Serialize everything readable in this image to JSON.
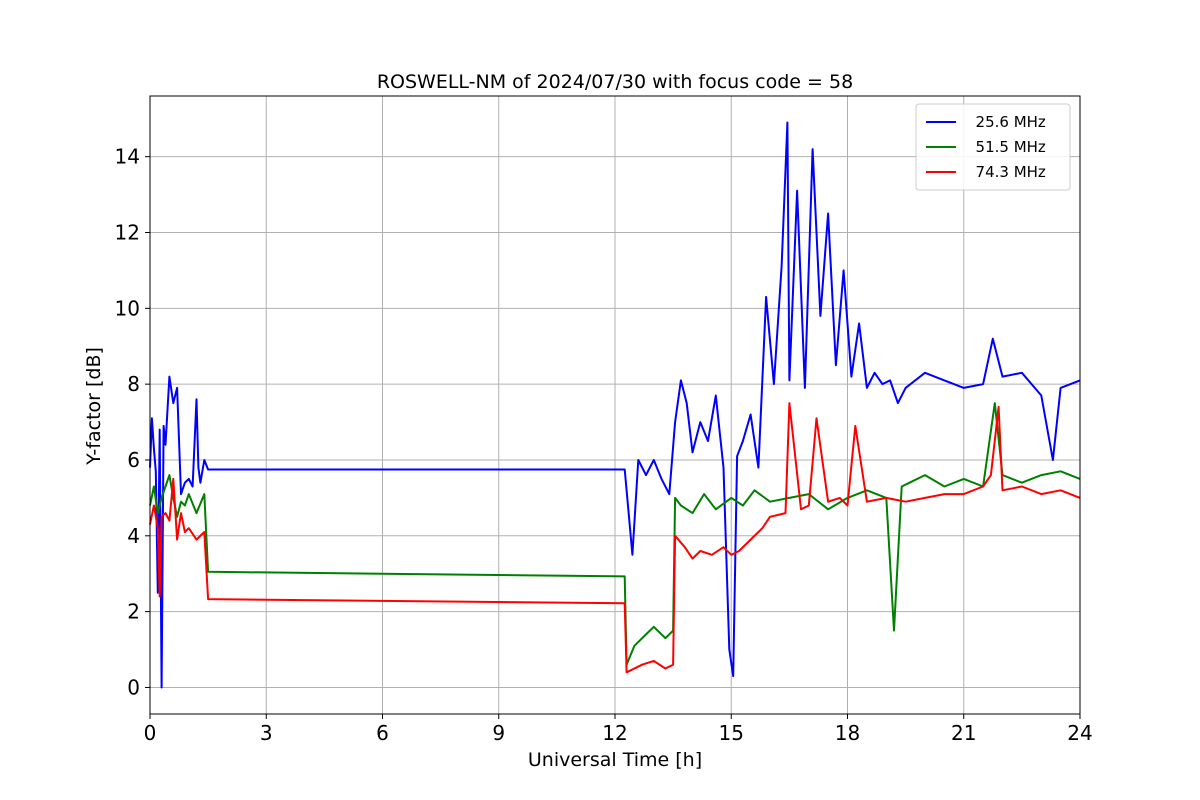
{
  "chart_data": {
    "type": "line",
    "title": "ROSWELL-NM of 2024/07/30 with focus code = 58",
    "xlabel": "Universal Time [h]",
    "ylabel": "Y-factor [dB]",
    "xlim": [
      0,
      24
    ],
    "ylim": [
      -0.7,
      15.6
    ],
    "xticks": [
      0,
      3,
      6,
      9,
      12,
      15,
      18,
      21,
      24
    ],
    "yticks": [
      0,
      2,
      4,
      6,
      8,
      10,
      12,
      14
    ],
    "grid": true,
    "legend_position": "top-right",
    "series": [
      {
        "name": "25.6 MHz",
        "color": "#0000ff",
        "x": [
          0,
          0.05,
          0.1,
          0.15,
          0.2,
          0.25,
          0.3,
          0.35,
          0.4,
          0.5,
          0.6,
          0.7,
          0.8,
          0.9,
          1.0,
          1.1,
          1.2,
          1.25,
          1.3,
          1.4,
          1.5,
          12.25,
          12.3,
          12.45,
          12.6,
          12.8,
          13.0,
          13.2,
          13.4,
          13.55,
          13.7,
          13.85,
          14.0,
          14.2,
          14.4,
          14.6,
          14.8,
          14.95,
          15.05,
          15.15,
          15.3,
          15.5,
          15.7,
          15.9,
          16.1,
          16.3,
          16.45,
          16.5,
          16.7,
          16.9,
          17.1,
          17.3,
          17.5,
          17.7,
          17.9,
          18.1,
          18.3,
          18.5,
          18.7,
          18.9,
          19.1,
          19.3,
          19.5,
          20.0,
          20.5,
          21.0,
          21.5,
          21.75,
          22.0,
          22.5,
          23.0,
          23.3,
          23.5,
          24.0
        ],
        "y": [
          5.8,
          7.1,
          6.3,
          5.7,
          2.5,
          6.8,
          0.0,
          6.9,
          6.4,
          8.2,
          7.5,
          7.9,
          5.1,
          5.4,
          5.5,
          5.3,
          7.6,
          5.8,
          5.4,
          6.0,
          5.75,
          5.75,
          5.2,
          3.5,
          6.0,
          5.6,
          6.0,
          5.5,
          5.1,
          7.0,
          8.1,
          7.5,
          6.2,
          7.0,
          6.5,
          7.7,
          5.8,
          1.0,
          0.3,
          6.1,
          6.5,
          7.2,
          5.8,
          10.3,
          8.0,
          11.1,
          14.9,
          8.1,
          13.1,
          7.9,
          14.2,
          9.8,
          12.5,
          8.5,
          11.0,
          8.2,
          9.6,
          7.9,
          8.3,
          8.0,
          8.1,
          7.5,
          7.9,
          8.3,
          8.1,
          7.9,
          8.0,
          9.2,
          8.2,
          8.3,
          7.7,
          6.0,
          7.9,
          8.1
        ]
      },
      {
        "name": "51.5 MHz",
        "color": "#008000",
        "x": [
          0,
          0.1,
          0.2,
          0.3,
          0.4,
          0.5,
          0.6,
          0.7,
          0.8,
          0.9,
          1.0,
          1.2,
          1.4,
          1.5,
          12.25,
          12.3,
          12.5,
          12.8,
          13.0,
          13.3,
          13.5,
          13.55,
          13.7,
          14.0,
          14.3,
          14.6,
          15.0,
          15.3,
          15.6,
          16.0,
          16.5,
          17.0,
          17.5,
          18.0,
          18.5,
          19.0,
          19.2,
          19.4,
          19.6,
          20.0,
          20.5,
          21.0,
          21.5,
          21.8,
          22.0,
          22.5,
          23.0,
          23.5,
          24.0
        ],
        "y": [
          4.8,
          5.3,
          4.6,
          5.0,
          5.3,
          5.6,
          5.0,
          4.5,
          4.9,
          4.8,
          5.1,
          4.6,
          5.1,
          3.05,
          2.93,
          0.6,
          1.1,
          1.4,
          1.6,
          1.3,
          1.5,
          5.0,
          4.8,
          4.6,
          5.1,
          4.7,
          5.0,
          4.8,
          5.2,
          4.9,
          5.0,
          5.1,
          4.7,
          5.0,
          5.2,
          5.0,
          1.5,
          5.3,
          5.4,
          5.6,
          5.3,
          5.5,
          5.3,
          7.5,
          5.6,
          5.4,
          5.6,
          5.7,
          5.5
        ]
      },
      {
        "name": "74.3 MHz",
        "color": "#ff0000",
        "x": [
          0,
          0.1,
          0.2,
          0.25,
          0.3,
          0.4,
          0.5,
          0.6,
          0.7,
          0.8,
          0.9,
          1.0,
          1.2,
          1.4,
          1.5,
          12.25,
          12.3,
          12.5,
          12.7,
          13.0,
          13.3,
          13.5,
          13.55,
          13.8,
          14.0,
          14.2,
          14.5,
          14.8,
          15.0,
          15.2,
          15.5,
          15.8,
          16.0,
          16.4,
          16.5,
          16.8,
          17.0,
          17.2,
          17.5,
          17.8,
          18.0,
          18.2,
          18.5,
          19.0,
          19.5,
          20.0,
          20.5,
          21.0,
          21.5,
          21.7,
          21.9,
          22.0,
          22.5,
          23.0,
          23.5,
          24.0
        ],
        "y": [
          4.3,
          4.8,
          4.2,
          2.4,
          4.5,
          4.6,
          4.4,
          5.5,
          3.9,
          4.6,
          4.1,
          4.2,
          3.9,
          4.1,
          2.33,
          2.22,
          0.4,
          0.5,
          0.6,
          0.7,
          0.5,
          0.6,
          4.0,
          3.7,
          3.4,
          3.6,
          3.5,
          3.7,
          3.5,
          3.6,
          3.9,
          4.2,
          4.5,
          4.6,
          7.5,
          4.7,
          4.8,
          7.1,
          4.9,
          5.0,
          4.8,
          6.9,
          4.9,
          5.0,
          4.9,
          5.0,
          5.1,
          5.1,
          5.3,
          5.6,
          7.4,
          5.2,
          5.3,
          5.1,
          5.2,
          5.0
        ]
      }
    ]
  }
}
